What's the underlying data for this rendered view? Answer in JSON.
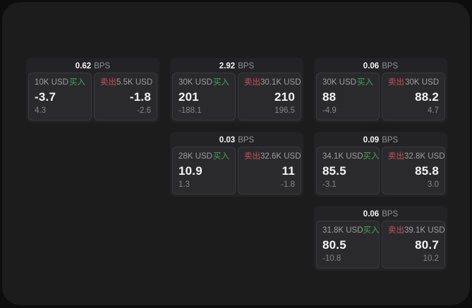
{
  "labels": {
    "bps": "BPS",
    "buy": "买入",
    "sell": "卖出"
  },
  "colors": {
    "buy_green": "#44a35c",
    "sell_red": "#c65062",
    "panel_bg": "#1c1c1d",
    "card_bg": "#232325",
    "subcard_bg": "#2a2a2c"
  },
  "cards": [
    {
      "bps": "0.62",
      "col": 0,
      "row": 0,
      "buy": {
        "amount": "10K USD",
        "price": "-3.7",
        "delta": "4.3"
      },
      "sell": {
        "amount": "5.5K USD",
        "price": "-1.8",
        "delta": "-2.6"
      }
    },
    {
      "bps": "2.92",
      "col": 1,
      "row": 0,
      "buy": {
        "amount": "30K USD",
        "price": "201",
        "delta": "-188.1"
      },
      "sell": {
        "amount": "30.1K USD",
        "price": "210",
        "delta": "196.5"
      }
    },
    {
      "bps": "0.06",
      "col": 2,
      "row": 0,
      "buy": {
        "amount": "30K USD",
        "price": "88",
        "delta": "-4.9"
      },
      "sell": {
        "amount": "30K USD",
        "price": "88.2",
        "delta": "4.7"
      }
    },
    {
      "bps": "0.03",
      "col": 1,
      "row": 1,
      "buy": {
        "amount": "28K USD",
        "price": "10.9",
        "delta": "1.3"
      },
      "sell": {
        "amount": "32.6K USD",
        "price": "11",
        "delta": "-1.8"
      }
    },
    {
      "bps": "0.09",
      "col": 2,
      "row": 1,
      "buy": {
        "amount": "34.1K USD",
        "price": "85.5",
        "delta": "-3.1"
      },
      "sell": {
        "amount": "32.8K USD",
        "price": "85.8",
        "delta": "3.0"
      }
    },
    {
      "bps": "0.06",
      "col": 2,
      "row": 2,
      "buy": {
        "amount": "31.8K USD",
        "price": "80.5",
        "delta": "-10.8"
      },
      "sell": {
        "amount": "39.1K USD",
        "price": "80.7",
        "delta": "10.2"
      }
    }
  ]
}
